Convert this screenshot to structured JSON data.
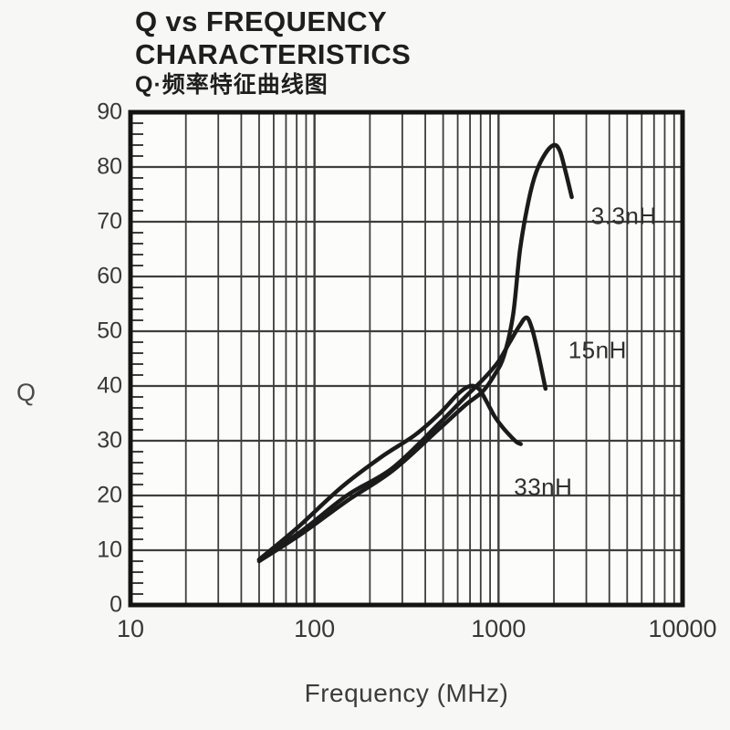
{
  "title": {
    "line1": "Q vs FREQUENCY",
    "line2": "CHARACTERISTICS",
    "line3": "Q·频率特征曲线图"
  },
  "chart_data": {
    "type": "line",
    "title": "Q vs FREQUENCY CHARACTERISTICS",
    "title_cn": "Q·频率特征曲线图",
    "xlabel": "Frequency (MHz)",
    "ylabel": "Q",
    "x_scale": "log",
    "x_range": [
      10,
      10000
    ],
    "y_range": [
      0,
      90
    ],
    "x_ticks": [
      10,
      100,
      1000,
      10000
    ],
    "y_ticks": [
      0,
      10,
      20,
      30,
      40,
      50,
      60,
      70,
      80,
      90
    ],
    "y_minor_tick_step": 2,
    "grid": true,
    "legend_position": "inline-labels",
    "colors": {
      "curve": "#1b1b1b",
      "grid": "#3e3e3e",
      "frame": "#141414",
      "text": "#2e2e2e",
      "plot_bg": "#fcfcfb"
    },
    "series": [
      {
        "name": "3.3nH",
        "label": {
          "f": 4800,
          "q": 71
        },
        "points": [
          [
            50,
            8
          ],
          [
            85,
            13
          ],
          [
            150,
            19
          ],
          [
            265,
            24.5
          ],
          [
            470,
            32
          ],
          [
            660,
            36.5
          ],
          [
            820,
            39
          ],
          [
            950,
            42
          ],
          [
            1070,
            45.5
          ],
          [
            1200,
            53
          ],
          [
            1310,
            65
          ],
          [
            1460,
            74
          ],
          [
            1600,
            79
          ],
          [
            1800,
            82.5
          ],
          [
            2000,
            84
          ],
          [
            2150,
            83
          ],
          [
            2300,
            79.5
          ],
          [
            2500,
            74.5
          ]
        ]
      },
      {
        "name": "15nH",
        "label": {
          "f": 3450,
          "q": 46.5
        },
        "points": [
          [
            50,
            8.3
          ],
          [
            85,
            13.5
          ],
          [
            150,
            20
          ],
          [
            265,
            25
          ],
          [
            470,
            33
          ],
          [
            660,
            38
          ],
          [
            840,
            41.5
          ],
          [
            1000,
            44.5
          ],
          [
            1150,
            48
          ],
          [
            1300,
            51
          ],
          [
            1420,
            52.5
          ],
          [
            1520,
            50.5
          ],
          [
            1640,
            46
          ],
          [
            1750,
            41.5
          ],
          [
            1800,
            39.5
          ]
        ]
      },
      {
        "name": "33nH",
        "label": {
          "f": 1750,
          "q": 21.5
        },
        "points": [
          [
            50,
            8.3
          ],
          [
            80,
            14
          ],
          [
            140,
            21.5
          ],
          [
            230,
            27
          ],
          [
            350,
            31
          ],
          [
            480,
            35
          ],
          [
            600,
            38.5
          ],
          [
            700,
            40
          ],
          [
            780,
            39.5
          ],
          [
            850,
            37.5
          ],
          [
            950,
            34.5
          ],
          [
            1050,
            32.5
          ],
          [
            1150,
            31
          ],
          [
            1250,
            29.8
          ],
          [
            1320,
            29.4
          ]
        ]
      }
    ]
  }
}
